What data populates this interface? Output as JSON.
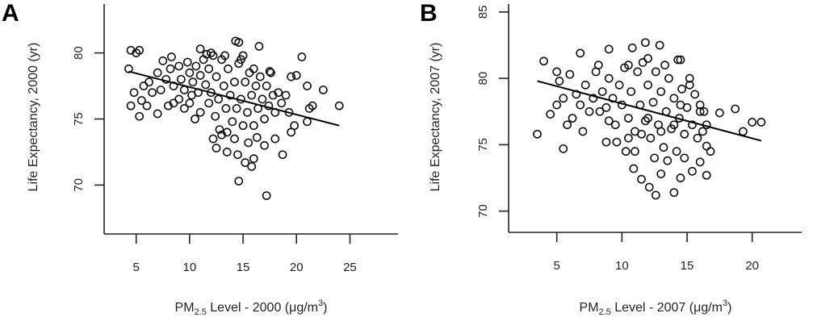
{
  "chart_data": [
    {
      "type": "scatter",
      "panel_label": "A",
      "ylabel": "Life Expectancy, 2000 (yr)",
      "xlabel": {
        "pre": "PM",
        "sub": "2.5",
        "mid": " Level - 2000 (μg/m",
        "sup": "3",
        "post": ")"
      },
      "xlim": [
        2,
        29.5
      ],
      "ylim": [
        66.3,
        83.7
      ],
      "xticks": [
        "5",
        "10",
        "15",
        "20",
        "25"
      ],
      "yticks": [
        "70",
        "75",
        "80"
      ],
      "grid": false,
      "regression_line": [
        [
          4.3,
          78.6
        ],
        [
          24.0,
          74.5
        ]
      ],
      "points": [
        [
          4.3,
          78.8
        ],
        [
          4.5,
          80.2
        ],
        [
          5.0,
          80.0
        ],
        [
          5.3,
          80.2
        ],
        [
          4.8,
          77.0
        ],
        [
          4.5,
          76.0
        ],
        [
          5.3,
          75.2
        ],
        [
          5.5,
          76.4
        ],
        [
          6.0,
          76.0
        ],
        [
          7.0,
          75.4
        ],
        [
          7.5,
          79.4
        ],
        [
          8.3,
          79.7
        ],
        [
          8.0,
          76.0
        ],
        [
          11.0,
          80.3
        ],
        [
          14.3,
          80.9
        ],
        [
          14.6,
          80.8
        ],
        [
          16.5,
          80.5
        ],
        [
          20.5,
          79.7
        ],
        [
          20.0,
          78.3
        ],
        [
          19.5,
          78.2
        ],
        [
          21.0,
          77.5
        ],
        [
          22.5,
          77.2
        ],
        [
          24.0,
          76.0
        ],
        [
          21.5,
          76.0
        ],
        [
          21.2,
          75.8
        ],
        [
          21.0,
          74.8
        ],
        [
          19.5,
          74.0
        ],
        [
          19.8,
          74.5
        ],
        [
          18.7,
          72.3
        ],
        [
          14.6,
          70.3
        ],
        [
          17.2,
          69.2
        ],
        [
          15.8,
          71.4
        ],
        [
          15.2,
          71.7
        ],
        [
          16.0,
          72.0
        ],
        [
          14.5,
          72.3
        ],
        [
          13.5,
          72.5
        ],
        [
          12.5,
          72.8
        ],
        [
          12.2,
          73.5
        ],
        [
          17.0,
          73.0
        ],
        [
          18.0,
          73.5
        ],
        [
          10.5,
          75.0
        ],
        [
          11.0,
          75.5
        ],
        [
          9.5,
          75.8
        ],
        [
          10.0,
          76.2
        ],
        [
          5.7,
          77.5
        ],
        [
          6.2,
          77.8
        ],
        [
          6.5,
          77.0
        ],
        [
          7.0,
          78.5
        ],
        [
          7.3,
          77.2
        ],
        [
          7.8,
          78.0
        ],
        [
          8.2,
          78.8
        ],
        [
          8.5,
          77.5
        ],
        [
          9.0,
          79.0
        ],
        [
          9.2,
          78.0
        ],
        [
          9.5,
          77.2
        ],
        [
          9.8,
          79.3
        ],
        [
          10.0,
          78.5
        ],
        [
          10.3,
          77.8
        ],
        [
          10.6,
          79.0
        ],
        [
          10.8,
          77.0
        ],
        [
          11.0,
          78.3
        ],
        [
          11.3,
          79.5
        ],
        [
          11.5,
          77.6
        ],
        [
          11.8,
          78.8
        ],
        [
          12.0,
          77.0
        ],
        [
          12.2,
          79.8
        ],
        [
          12.5,
          78.2
        ],
        [
          12.7,
          76.5
        ],
        [
          13.0,
          79.5
        ],
        [
          13.2,
          77.5
        ],
        [
          13.4,
          75.8
        ],
        [
          13.6,
          78.8
        ],
        [
          13.8,
          76.8
        ],
        [
          14.0,
          74.8
        ],
        [
          14.2,
          77.8
        ],
        [
          14.4,
          75.8
        ],
        [
          14.6,
          79.2
        ],
        [
          14.8,
          76.5
        ],
        [
          15.0,
          74.5
        ],
        [
          15.2,
          77.8
        ],
        [
          15.4,
          75.5
        ],
        [
          15.6,
          78.5
        ],
        [
          15.8,
          76.8
        ],
        [
          16.0,
          74.5
        ],
        [
          16.2,
          77.5
        ],
        [
          16.4,
          75.8
        ],
        [
          16.6,
          78.2
        ],
        [
          16.8,
          76.5
        ],
        [
          17.0,
          75.0
        ],
        [
          17.2,
          77.5
        ],
        [
          17.4,
          76.0
        ],
        [
          17.6,
          78.5
        ],
        [
          17.8,
          76.8
        ],
        [
          18.0,
          75.5
        ],
        [
          18.3,
          77.0
        ],
        [
          18.6,
          76.2
        ],
        [
          19.0,
          76.8
        ],
        [
          19.3,
          75.5
        ],
        [
          12.8,
          74.2
        ],
        [
          13.5,
          74.0
        ],
        [
          14.2,
          73.5
        ],
        [
          15.5,
          73.2
        ],
        [
          16.3,
          73.6
        ],
        [
          13.0,
          73.8
        ],
        [
          11.8,
          76.2
        ],
        [
          12.4,
          75.2
        ],
        [
          10.2,
          76.8
        ],
        [
          9.0,
          76.5
        ],
        [
          8.5,
          76.2
        ],
        [
          15.0,
          79.8
        ],
        [
          14.8,
          79.5
        ],
        [
          16.0,
          78.8
        ],
        [
          17.5,
          78.6
        ],
        [
          12.0,
          80.0
        ],
        [
          11.6,
          79.9
        ],
        [
          13.3,
          79.8
        ]
      ]
    },
    {
      "type": "scatter",
      "panel_label": "B",
      "ylabel": "Life Expectancy, 2007 (yr)",
      "xlabel": {
        "pre": "PM",
        "sub": "2.5",
        "mid": " Level - 2007 (μg/m",
        "sup": "3",
        "post": ")"
      },
      "xlim": [
        1.3,
        23.8
      ],
      "ylim": [
        68.4,
        85.6
      ],
      "xticks": [
        "5",
        "10",
        "15",
        "20"
      ],
      "yticks": [
        "70",
        "75",
        "80",
        "85"
      ],
      "grid": false,
      "regression_line": [
        [
          3.5,
          79.8
        ],
        [
          20.7,
          75.3
        ]
      ],
      "points": [
        [
          3.5,
          75.8
        ],
        [
          4.0,
          81.3
        ],
        [
          4.5,
          77.3
        ],
        [
          5.5,
          74.7
        ],
        [
          5.0,
          80.5
        ],
        [
          5.2,
          79.8
        ],
        [
          6.0,
          80.3
        ],
        [
          6.8,
          81.9
        ],
        [
          9.0,
          82.2
        ],
        [
          10.8,
          82.3
        ],
        [
          11.8,
          82.7
        ],
        [
          12.9,
          82.5
        ],
        [
          14.3,
          81.4
        ],
        [
          14.5,
          81.4
        ],
        [
          17.5,
          77.4
        ],
        [
          18.7,
          77.7
        ],
        [
          19.3,
          76.0
        ],
        [
          20.0,
          76.7
        ],
        [
          20.7,
          76.7
        ],
        [
          16.5,
          72.7
        ],
        [
          14.0,
          71.4
        ],
        [
          12.6,
          71.2
        ],
        [
          12.1,
          71.8
        ],
        [
          11.5,
          72.4
        ],
        [
          10.9,
          73.2
        ],
        [
          13.0,
          72.8
        ],
        [
          14.5,
          72.5
        ],
        [
          15.4,
          73.0
        ],
        [
          16.0,
          73.7
        ],
        [
          16.5,
          74.9
        ],
        [
          8.8,
          75.2
        ],
        [
          9.6,
          75.2
        ],
        [
          10.3,
          74.5
        ],
        [
          5.0,
          78.0
        ],
        [
          5.5,
          78.5
        ],
        [
          5.8,
          76.5
        ],
        [
          6.2,
          77.0
        ],
        [
          6.5,
          78.8
        ],
        [
          7.0,
          76.0
        ],
        [
          7.2,
          79.5
        ],
        [
          7.5,
          77.5
        ],
        [
          7.8,
          78.5
        ],
        [
          8.0,
          80.5
        ],
        [
          8.2,
          81.0
        ],
        [
          8.5,
          79.0
        ],
        [
          8.8,
          77.8
        ],
        [
          9.0,
          80.0
        ],
        [
          9.3,
          78.5
        ],
        [
          9.5,
          76.5
        ],
        [
          9.8,
          79.5
        ],
        [
          10.0,
          78.0
        ],
        [
          10.2,
          80.8
        ],
        [
          10.5,
          77.0
        ],
        [
          10.7,
          79.0
        ],
        [
          11.0,
          76.0
        ],
        [
          11.2,
          80.5
        ],
        [
          11.4,
          78.0
        ],
        [
          11.6,
          81.2
        ],
        [
          11.8,
          76.8
        ],
        [
          12.0,
          79.5
        ],
        [
          12.2,
          75.5
        ],
        [
          12.4,
          78.2
        ],
        [
          12.6,
          80.5
        ],
        [
          12.8,
          76.5
        ],
        [
          13.0,
          79.0
        ],
        [
          13.2,
          74.8
        ],
        [
          13.4,
          77.5
        ],
        [
          13.6,
          80.0
        ],
        [
          13.8,
          76.2
        ],
        [
          14.0,
          78.5
        ],
        [
          14.2,
          74.5
        ],
        [
          14.4,
          77.0
        ],
        [
          14.6,
          79.2
        ],
        [
          14.8,
          75.8
        ],
        [
          15.0,
          77.8
        ],
        [
          15.2,
          80.0
        ],
        [
          15.4,
          76.5
        ],
        [
          15.6,
          78.8
        ],
        [
          15.8,
          75.5
        ],
        [
          16.0,
          77.5
        ],
        [
          16.2,
          76.0
        ],
        [
          16.5,
          76.5
        ],
        [
          16.8,
          74.5
        ],
        [
          12.5,
          74.0
        ],
        [
          13.5,
          73.8
        ],
        [
          14.8,
          74.0
        ],
        [
          11.0,
          74.5
        ],
        [
          11.5,
          75.8
        ],
        [
          10.5,
          75.5
        ],
        [
          9.0,
          76.8
        ],
        [
          8.3,
          77.5
        ],
        [
          6.8,
          78.0
        ],
        [
          13.3,
          81.0
        ],
        [
          12.0,
          81.5
        ],
        [
          10.5,
          81.0
        ],
        [
          15.2,
          79.5
        ],
        [
          16.0,
          78.0
        ],
        [
          16.3,
          77.5
        ],
        [
          14.0,
          76.5
        ],
        [
          13.0,
          76.0
        ],
        [
          12.0,
          77.0
        ],
        [
          14.5,
          78.0
        ]
      ]
    }
  ]
}
